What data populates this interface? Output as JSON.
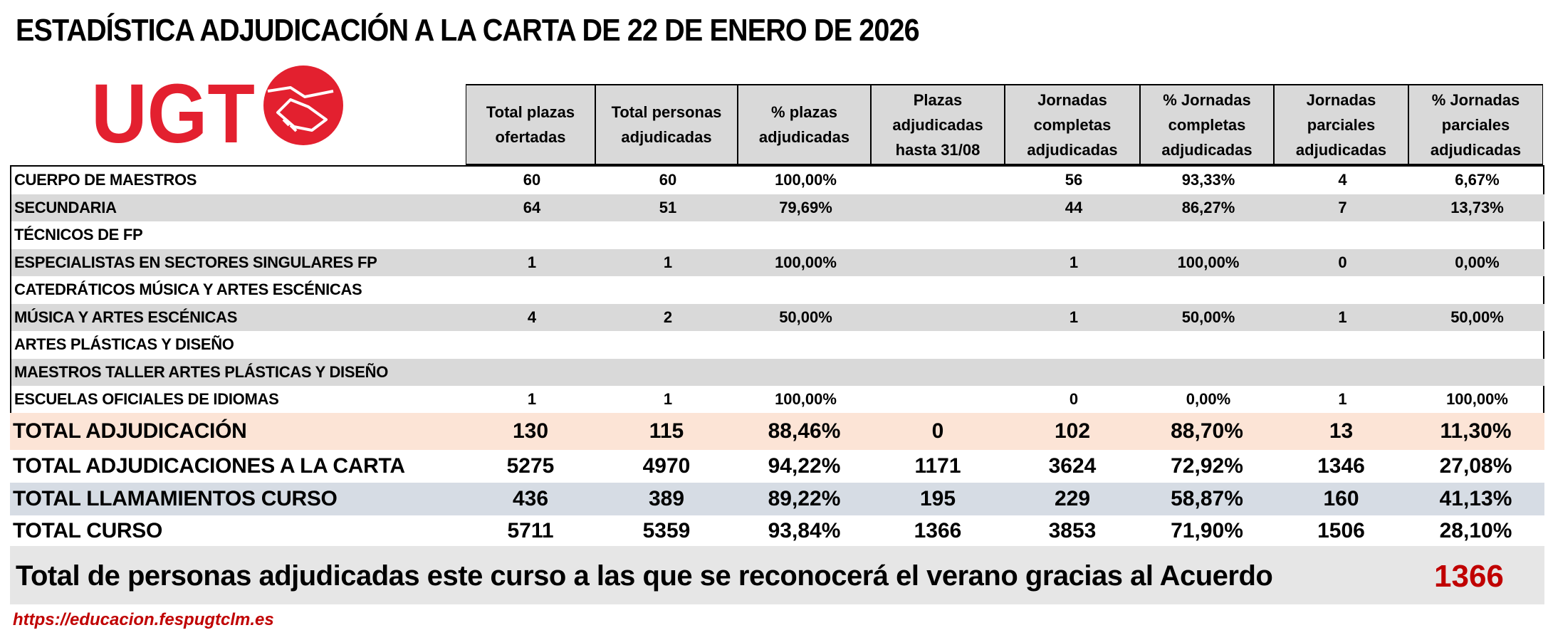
{
  "title": "ESTADÍSTICA ADJUDICACIÓN A LA CARTA DE 22 DE ENERO DE 2026",
  "logo": {
    "text": "UGT",
    "brand_color": "#e3202f",
    "icon": "handshake-icon"
  },
  "headers": [
    "Total plazas ofertadas",
    "Total personas adjudicadas",
    "% plazas adjudicadas",
    "Plazas adjudicadas hasta 31/08",
    "Jornadas completas adjudicadas",
    "% Jornadas completas adjudicadas",
    "Jornadas parciales adjudicadas",
    "% Jornadas parciales adjudicadas"
  ],
  "rows": [
    {
      "label": "CUERPO DE MAESTROS",
      "values": [
        "60",
        "60",
        "100,00%",
        "",
        "56",
        "93,33%",
        "4",
        "6,67%"
      ]
    },
    {
      "label": "SECUNDARIA",
      "values": [
        "64",
        "51",
        "79,69%",
        "",
        "44",
        "86,27%",
        "7",
        "13,73%"
      ]
    },
    {
      "label": "TÉCNICOS DE FP",
      "values": [
        "",
        "",
        "",
        "",
        "",
        "",
        "",
        ""
      ]
    },
    {
      "label": "ESPECIALISTAS EN SECTORES SINGULARES FP",
      "values": [
        "1",
        "1",
        "100,00%",
        "",
        "1",
        "100,00%",
        "0",
        "0,00%"
      ]
    },
    {
      "label": "CATEDRÁTICOS MÚSICA Y ARTES ESCÉNICAS",
      "values": [
        "",
        "",
        "",
        "",
        "",
        "",
        "",
        ""
      ]
    },
    {
      "label": "MÚSICA Y ARTES ESCÉNICAS",
      "values": [
        "4",
        "2",
        "50,00%",
        "",
        "1",
        "50,00%",
        "1",
        "50,00%"
      ]
    },
    {
      "label": "ARTES PLÁSTICAS Y DISEÑO",
      "values": [
        "",
        "",
        "",
        "",
        "",
        "",
        "",
        ""
      ]
    },
    {
      "label": "MAESTROS TALLER ARTES PLÁSTICAS Y DISEÑO",
      "values": [
        "",
        "",
        "",
        "",
        "",
        "",
        "",
        ""
      ]
    },
    {
      "label": "ESCUELAS OFICIALES DE IDIOMAS",
      "values": [
        "1",
        "1",
        "100,00%",
        "",
        "0",
        "0,00%",
        "1",
        "100,00%"
      ]
    }
  ],
  "totals": [
    {
      "label": "TOTAL ADJUDICACIÓN",
      "values": [
        "130",
        "115",
        "88,46%",
        "0",
        "102",
        "88,70%",
        "13",
        "11,30%"
      ],
      "bg": "#fce4d6"
    },
    {
      "label": "TOTAL ADJUDICACIONES A LA CARTA",
      "values": [
        "5275",
        "4970",
        "94,22%",
        "1171",
        "3624",
        "72,92%",
        "1346",
        "27,08%"
      ],
      "bg": "#ffffff"
    },
    {
      "label": "TOTAL LLAMAMIENTOS CURSO",
      "values": [
        "436",
        "389",
        "89,22%",
        "195",
        "229",
        "58,87%",
        "160",
        "41,13%"
      ],
      "bg": "#d6dce4"
    },
    {
      "label": "TOTAL CURSO",
      "values": [
        "5711",
        "5359",
        "93,84%",
        "1366",
        "3853",
        "71,90%",
        "1506",
        "28,10%"
      ],
      "bg": "#ffffff"
    }
  ],
  "summary": {
    "text": "Total de personas adjudicadas este curso a las que se reconocerá el verano gracias al Acuerdo",
    "value": "1366"
  },
  "url": "https://educacion.fespugtclm.es"
}
